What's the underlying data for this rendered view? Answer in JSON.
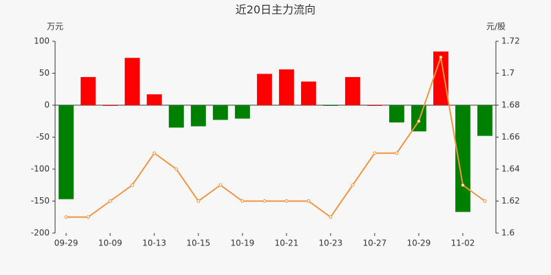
{
  "chart_data": {
    "type": "bar",
    "title": "近20日主力流向",
    "y_label": "万元",
    "y2_label": "元/股",
    "categories": [
      "09-29",
      null,
      "10-09",
      null,
      "10-13",
      null,
      "10-15",
      null,
      "10-19",
      null,
      "10-21",
      null,
      "10-23",
      null,
      "10-27",
      null,
      "10-29",
      null,
      "11-02",
      null
    ],
    "series": [
      {
        "color": "#ff0000",
        "negative_color": "#008000",
        "values": [
          -147,
          44,
          0,
          74,
          17,
          -35,
          -33,
          -23,
          -21,
          49,
          56,
          37,
          -1,
          44,
          0,
          -27,
          -41,
          84,
          -167,
          -48
        ]
      },
      {
        "type": "line",
        "axis": "y2",
        "color": "#f0953f",
        "values": [
          1.61,
          1.61,
          1.62,
          1.63,
          1.65,
          1.64,
          1.62,
          1.63,
          1.62,
          1.62,
          1.62,
          1.62,
          1.61,
          1.63,
          1.65,
          1.65,
          1.67,
          1.71,
          1.63,
          1.62
        ]
      }
    ],
    "ylim": [
      -200,
      100
    ],
    "yticks": [
      100,
      50,
      0,
      -50,
      -100,
      -150,
      -200
    ],
    "y2lim": [
      1.6,
      1.72
    ],
    "y2ticks": [
      1.72,
      1.7,
      1.68,
      1.66,
      1.64,
      1.62,
      1.6
    ]
  }
}
